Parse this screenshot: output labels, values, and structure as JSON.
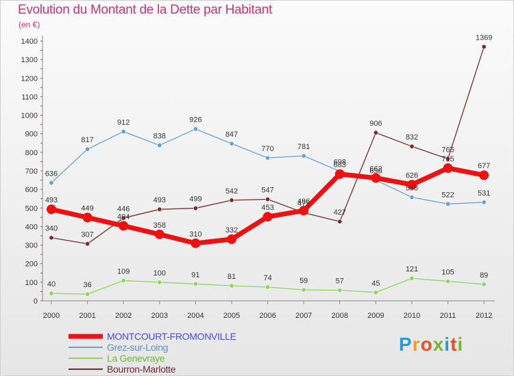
{
  "title": "Evolution du Montant de la Dette par Habitant",
  "unit": "(en €)",
  "logo": {
    "letters": [
      "P",
      "r",
      "o",
      "x",
      "i",
      "t",
      "i"
    ],
    "colors": [
      "#2a9ad5",
      "#f39a1f",
      "#e94f24",
      "#7cb42f",
      "#2a9ad5",
      "#e94f24",
      "#7cb42f"
    ]
  },
  "chart_data": {
    "type": "line",
    "x": [
      "2000",
      "2001",
      "2002",
      "2003",
      "2004",
      "2005",
      "2006",
      "2007",
      "2008",
      "2009",
      "2010",
      "2011",
      "2012"
    ],
    "ylim": [
      0,
      1400
    ],
    "yticks": [
      0,
      100,
      200,
      300,
      400,
      500,
      600,
      700,
      800,
      900,
      1000,
      1100,
      1200,
      1300,
      1400
    ],
    "grid": false,
    "legend_position": "bottom-left",
    "series": [
      {
        "name": "MONTCOURT-FROMONVILLE",
        "color": "#ee1111",
        "legend_color": "#4a4aee",
        "width": 7,
        "marker": 7,
        "values": [
          493,
          449,
          404,
          358,
          310,
          332,
          453,
          486,
          683,
          662,
          626,
          715,
          677
        ]
      },
      {
        "name": "Grez-sur-Loing",
        "color": "#6a9fd0",
        "legend_color": "#5a8fc0",
        "width": 1.3,
        "marker": 3.2,
        "values": [
          636,
          817,
          912,
          838,
          926,
          847,
          770,
          781,
          698,
          650,
          558,
          522,
          531
        ]
      },
      {
        "name": "La Genevraye",
        "color": "#8fd460",
        "legend_color": "#6fb440",
        "width": 1.3,
        "marker": 3.2,
        "values": [
          40,
          36,
          109,
          100,
          91,
          81,
          74,
          59,
          57,
          45,
          121,
          105,
          89
        ]
      },
      {
        "name": "Bourron-Marlotte",
        "color": "#7a2a2a",
        "legend_color": "#6a2a3a",
        "width": 1.3,
        "marker": 3.2,
        "values": [
          340,
          307,
          446,
          493,
          499,
          542,
          547,
          475,
          427,
          906,
          832,
          765,
          1369
        ]
      }
    ]
  }
}
